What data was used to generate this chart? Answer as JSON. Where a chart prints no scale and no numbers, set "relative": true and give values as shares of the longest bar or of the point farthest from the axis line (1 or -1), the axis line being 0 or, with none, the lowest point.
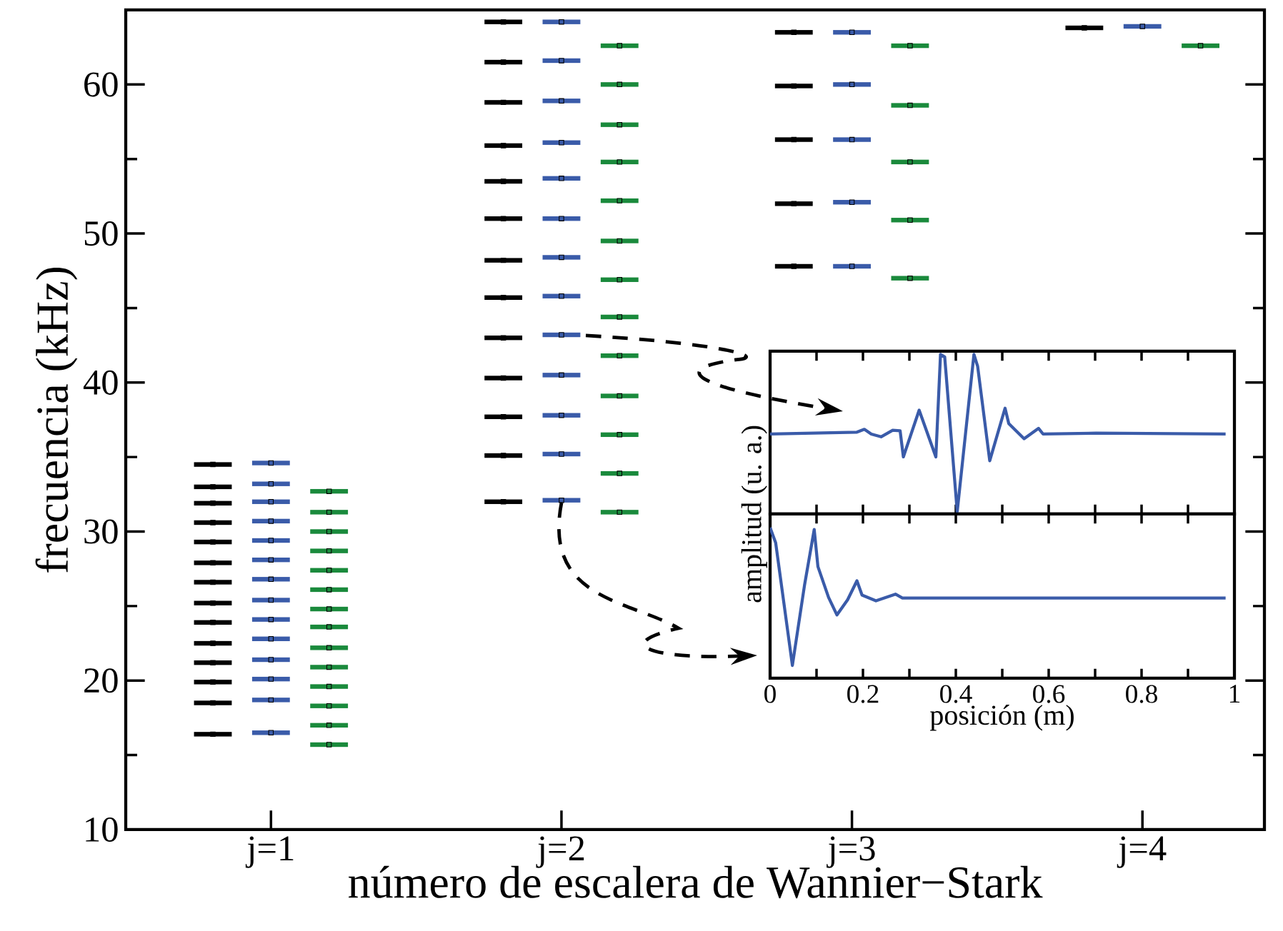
{
  "chart_data": [
    {
      "type": "scatter",
      "marker": "square",
      "xlabel": "número de escalera de Wannier−Stark",
      "ylabel": "frecuencia (kHz)",
      "xlim": [
        0.5,
        4.42
      ],
      "xticks": [
        {
          "value": 1,
          "label": "j=1"
        },
        {
          "value": 2,
          "label": "j=2"
        },
        {
          "value": 3,
          "label": "j=3"
        },
        {
          "value": 4,
          "label": "j=4"
        }
      ],
      "ylim": [
        10,
        65
      ],
      "yticks": [
        10,
        20,
        30,
        40,
        50,
        60
      ],
      "series": [
        {
          "color": "#000000",
          "x": [
            0.8,
            0.8,
            0.8,
            0.8,
            0.8,
            0.8,
            0.8,
            0.8,
            0.8,
            0.8,
            0.8,
            0.8,
            0.8,
            0.8,
            1.8,
            1.8,
            1.8,
            1.8,
            1.8,
            1.8,
            1.8,
            1.8,
            1.8,
            1.8,
            1.8,
            1.8,
            1.8,
            2.8,
            2.8,
            2.8,
            2.8,
            2.8,
            3.8
          ],
          "xerrors": [
            0.065,
            0.065,
            0.065,
            0.065,
            0.065,
            0.065,
            0.065,
            0.065,
            0.065,
            0.065,
            0.065,
            0.065,
            0.065,
            0.065,
            0.065,
            0.065,
            0.065,
            0.065,
            0.065,
            0.065,
            0.065,
            0.065,
            0.065,
            0.065,
            0.065,
            0.065,
            0.065,
            0.065,
            0.065,
            0.065,
            0.065,
            0.065,
            0.065
          ],
          "values": [
            34.5,
            33.0,
            31.9,
            30.6,
            29.3,
            27.9,
            26.6,
            25.2,
            23.9,
            22.5,
            21.2,
            19.9,
            18.5,
            16.4,
            64.2,
            61.5,
            58.8,
            55.9,
            53.5,
            51.0,
            48.2,
            45.7,
            43.0,
            40.3,
            37.7,
            35.1,
            32.0,
            63.5,
            59.9,
            56.3,
            52.0,
            47.8,
            63.8
          ]
        },
        {
          "color": "#3a5ba9",
          "x": [
            1,
            1,
            1,
            1,
            1,
            1,
            1,
            1,
            1,
            1,
            1,
            1,
            1,
            1,
            2,
            2,
            2,
            2,
            2,
            2,
            2,
            2,
            2,
            2,
            2,
            2,
            2,
            3,
            3,
            3,
            3,
            3,
            4
          ],
          "xerrors": [
            0.065,
            0.065,
            0.065,
            0.065,
            0.065,
            0.065,
            0.065,
            0.065,
            0.065,
            0.065,
            0.065,
            0.065,
            0.065,
            0.065,
            0.065,
            0.065,
            0.065,
            0.065,
            0.065,
            0.065,
            0.065,
            0.065,
            0.065,
            0.065,
            0.065,
            0.065,
            0.065,
            0.065,
            0.065,
            0.065,
            0.065,
            0.065,
            0.065
          ],
          "values": [
            34.6,
            33.2,
            32.0,
            30.7,
            29.4,
            28.1,
            26.8,
            25.4,
            24.1,
            22.8,
            21.4,
            20.1,
            18.7,
            16.5,
            64.2,
            61.6,
            58.9,
            56.1,
            53.7,
            51.0,
            48.4,
            45.8,
            43.2,
            40.5,
            37.8,
            35.2,
            32.1,
            63.5,
            60.0,
            56.3,
            52.1,
            47.8,
            63.9
          ]
        },
        {
          "color": "#1a8a3c",
          "x": [
            1.2,
            1.2,
            1.2,
            1.2,
            1.2,
            1.2,
            1.2,
            1.2,
            1.2,
            1.2,
            1.2,
            1.2,
            1.2,
            1.2,
            2.2,
            2.2,
            2.2,
            2.2,
            2.2,
            2.2,
            2.2,
            2.2,
            2.2,
            2.2,
            2.2,
            2.2,
            2.2,
            3.2,
            3.2,
            3.2,
            3.2,
            3.2,
            4.2
          ],
          "xerrors": [
            0.065,
            0.065,
            0.065,
            0.065,
            0.065,
            0.065,
            0.065,
            0.065,
            0.065,
            0.065,
            0.065,
            0.065,
            0.065,
            0.065,
            0.065,
            0.065,
            0.065,
            0.065,
            0.065,
            0.065,
            0.065,
            0.065,
            0.065,
            0.065,
            0.065,
            0.065,
            0.065,
            0.065,
            0.065,
            0.065,
            0.065,
            0.065,
            0.065
          ],
          "values": [
            32.7,
            31.3,
            30.0,
            28.7,
            27.4,
            26.1,
            24.8,
            23.6,
            22.2,
            20.9,
            19.6,
            18.3,
            17.0,
            15.7,
            62.6,
            60.0,
            57.3,
            54.8,
            52.2,
            49.5,
            46.9,
            44.4,
            41.8,
            39.1,
            36.5,
            33.9,
            31.3,
            62.6,
            58.6,
            54.8,
            50.9,
            47.0,
            62.6
          ]
        }
      ]
    },
    {
      "type": "line",
      "relative": true,
      "tick_labels": false,
      "xlim": [
        0,
        1
      ],
      "xticks": [
        0,
        {
          "value": 0.1,
          "label": null
        },
        0.2,
        {
          "value": 0.3,
          "label": null
        },
        0.4,
        {
          "value": 0.5,
          "label": null
        },
        0.6,
        {
          "value": 0.7,
          "label": null
        },
        0.8,
        {
          "value": 0.9,
          "label": null
        },
        1
      ],
      "series": [
        {
          "color": "#3a5ba9",
          "x": [
            0,
            0.187,
            0.203,
            0.218,
            0.239,
            0.264,
            0.28,
            0.287,
            0.321,
            0.357,
            0.367,
            0.376,
            0.403,
            0.439,
            0.447,
            0.473,
            0.506,
            0.514,
            0.547,
            0.578,
            0.588,
            0.702,
            0.981
          ],
          "values": [
            0.501,
            0.513,
            0.531,
            0.501,
            0.484,
            0.525,
            0.522,
            0.358,
            0.651,
            0.358,
            1.0,
            0.985,
            0.015,
            1.0,
            0.925,
            0.334,
            0.663,
            0.567,
            0.472,
            0.537,
            0.501,
            0.507,
            0.501
          ]
        }
      ]
    },
    {
      "type": "line",
      "relative": true,
      "tick_labels": "x",
      "xlabel": "posición (m)",
      "ylabel": "amplitud (u. a.)",
      "xlim": [
        0,
        1
      ],
      "xticks": [
        0,
        {
          "value": 0.1,
          "label": null
        },
        0.2,
        {
          "value": 0.3,
          "label": null
        },
        0.4,
        {
          "value": 0.5,
          "label": null
        },
        0.6,
        {
          "value": 0.7,
          "label": null
        },
        0.8,
        {
          "value": 0.9,
          "label": null
        },
        1
      ],
      "series": [
        {
          "color": "#3a5ba9",
          "x": [
            0,
            0.012,
            0.048,
            0.074,
            0.095,
            0.103,
            0.126,
            0.144,
            0.167,
            0.187,
            0.198,
            0.228,
            0.27,
            0.285,
            0.981
          ],
          "values": [
            1.0,
            0.899,
            0.085,
            0.615,
            0.987,
            0.741,
            0.536,
            0.42,
            0.521,
            0.647,
            0.552,
            0.514,
            0.558,
            0.533,
            0.533
          ]
        }
      ]
    }
  ]
}
